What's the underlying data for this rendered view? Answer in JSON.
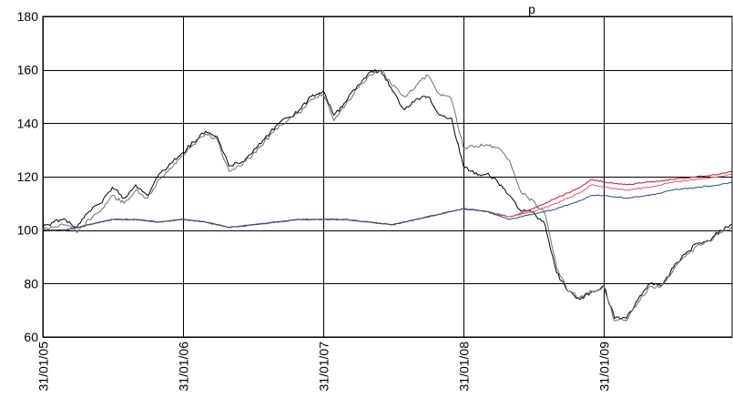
{
  "chart_data": {
    "type": "line",
    "title": "p",
    "xlabel": "",
    "ylabel": "",
    "x_ticks": [
      "31/01/05",
      "31/01/06",
      "31/01/07",
      "31/01/08",
      "31/01/09"
    ],
    "xlim": [
      "31/01/05",
      "31/12/09"
    ],
    "ylim": [
      60,
      180
    ],
    "y_ticks": [
      60,
      80,
      100,
      120,
      140,
      160,
      180
    ],
    "grid": true,
    "legend": "none",
    "colors": {
      "equity_a": "#000000",
      "equity_b": "#6e6e6e",
      "bond_red_1": "#c8102e",
      "bond_red_2": "#e0566b",
      "bond_blue": "#1f4e8c"
    },
    "series": [
      {
        "color_key": "equity_a",
        "points": [
          [
            "31/01/05",
            101
          ],
          [
            "28/02/05",
            103
          ],
          [
            "31/03/05",
            104
          ],
          [
            "30/04/05",
            101
          ],
          [
            "31/05/05",
            107
          ],
          [
            "30/06/05",
            110
          ],
          [
            "31/07/05",
            116
          ],
          [
            "31/08/05",
            112
          ],
          [
            "30/09/05",
            117
          ],
          [
            "31/10/05",
            113
          ],
          [
            "30/11/05",
            121
          ],
          [
            "31/12/05",
            125
          ],
          [
            "31/01/06",
            129
          ],
          [
            "28/02/06",
            133
          ],
          [
            "31/03/06",
            137
          ],
          [
            "30/04/06",
            135
          ],
          [
            "31/05/06",
            124
          ],
          [
            "30/06/06",
            125
          ],
          [
            "31/07/06",
            129
          ],
          [
            "31/08/06",
            134
          ],
          [
            "30/09/06",
            139
          ],
          [
            "31/10/06",
            142
          ],
          [
            "30/11/06",
            145
          ],
          [
            "31/12/06",
            150
          ],
          [
            "31/01/07",
            152
          ],
          [
            "28/02/07",
            143
          ],
          [
            "31/03/07",
            148
          ],
          [
            "30/04/07",
            154
          ],
          [
            "31/05/07",
            159
          ],
          [
            "30/06/07",
            160
          ],
          [
            "31/07/07",
            152
          ],
          [
            "31/08/07",
            145
          ],
          [
            "30/09/07",
            149
          ],
          [
            "31/10/07",
            150
          ],
          [
            "30/11/07",
            143
          ],
          [
            "31/12/07",
            142
          ],
          [
            "31/01/08",
            124
          ],
          [
            "29/02/08",
            121
          ],
          [
            "31/03/08",
            121
          ],
          [
            "30/04/08",
            118
          ],
          [
            "31/05/08",
            113
          ],
          [
            "30/06/08",
            107
          ],
          [
            "31/07/08",
            107
          ],
          [
            "31/08/08",
            102
          ],
          [
            "30/09/08",
            84
          ],
          [
            "31/10/08",
            77
          ],
          [
            "30/11/08",
            74
          ],
          [
            "31/12/08",
            77
          ],
          [
            "31/01/09",
            79
          ],
          [
            "28/02/09",
            67
          ],
          [
            "31/03/09",
            67
          ],
          [
            "30/04/09",
            74
          ],
          [
            "31/05/09",
            80
          ],
          [
            "30/06/09",
            79
          ],
          [
            "31/07/09",
            86
          ],
          [
            "31/08/09",
            91
          ],
          [
            "30/09/09",
            95
          ],
          [
            "31/10/09",
            96
          ],
          [
            "30/11/09",
            100
          ],
          [
            "31/12/09",
            102
          ]
        ]
      },
      {
        "color_key": "equity_b",
        "points": [
          [
            "31/01/05",
            100
          ],
          [
            "28/02/05",
            101
          ],
          [
            "31/03/05",
            102
          ],
          [
            "30/04/05",
            99
          ],
          [
            "31/05/05",
            104
          ],
          [
            "30/06/05",
            107
          ],
          [
            "31/07/05",
            113
          ],
          [
            "31/08/05",
            110
          ],
          [
            "30/09/05",
            115
          ],
          [
            "31/10/05",
            112
          ],
          [
            "30/11/05",
            119
          ],
          [
            "31/12/05",
            123
          ],
          [
            "31/01/06",
            128
          ],
          [
            "28/02/06",
            132
          ],
          [
            "31/03/06",
            136
          ],
          [
            "30/04/06",
            134
          ],
          [
            "31/05/06",
            122
          ],
          [
            "30/06/06",
            124
          ],
          [
            "31/07/06",
            128
          ],
          [
            "31/08/06",
            133
          ],
          [
            "30/09/06",
            138
          ],
          [
            "31/10/06",
            141
          ],
          [
            "30/11/06",
            144
          ],
          [
            "31/12/06",
            149
          ],
          [
            "31/01/07",
            151
          ],
          [
            "28/02/07",
            141
          ],
          [
            "31/03/07",
            147
          ],
          [
            "30/04/07",
            153
          ],
          [
            "31/05/07",
            158
          ],
          [
            "30/06/07",
            160
          ],
          [
            "31/07/07",
            154
          ],
          [
            "31/08/07",
            150
          ],
          [
            "30/09/07",
            154
          ],
          [
            "31/10/07",
            158
          ],
          [
            "30/11/07",
            151
          ],
          [
            "31/12/07",
            149
          ],
          [
            "31/01/08",
            131
          ],
          [
            "29/02/08",
            131
          ],
          [
            "31/03/08",
            132
          ],
          [
            "30/04/08",
            131
          ],
          [
            "31/05/08",
            126
          ],
          [
            "30/06/08",
            114
          ],
          [
            "31/07/08",
            111
          ],
          [
            "31/08/08",
            106
          ],
          [
            "30/09/08",
            86
          ],
          [
            "31/10/08",
            77
          ],
          [
            "30/11/08",
            75
          ],
          [
            "31/12/08",
            77
          ],
          [
            "31/01/09",
            79
          ],
          [
            "28/02/09",
            66
          ],
          [
            "31/03/09",
            66
          ],
          [
            "30/04/09",
            73
          ],
          [
            "31/05/09",
            79
          ],
          [
            "30/06/09",
            79
          ],
          [
            "31/07/09",
            85
          ],
          [
            "31/08/09",
            90
          ],
          [
            "30/09/09",
            94
          ],
          [
            "31/10/09",
            96
          ],
          [
            "30/11/09",
            99
          ],
          [
            "31/12/09",
            101
          ]
        ]
      },
      {
        "color_key": "bond_red_1",
        "points": [
          [
            "31/01/05",
            100
          ],
          [
            "31/03/05",
            100
          ],
          [
            "31/05/05",
            102
          ],
          [
            "31/07/05",
            104
          ],
          [
            "30/09/05",
            104
          ],
          [
            "30/11/05",
            103
          ],
          [
            "31/01/06",
            104
          ],
          [
            "31/03/06",
            103
          ],
          [
            "31/05/06",
            101
          ],
          [
            "31/07/06",
            102
          ],
          [
            "30/09/06",
            103
          ],
          [
            "30/11/06",
            104
          ],
          [
            "31/01/07",
            104
          ],
          [
            "31/03/07",
            104
          ],
          [
            "31/05/07",
            103
          ],
          [
            "31/07/07",
            102
          ],
          [
            "30/09/07",
            104
          ],
          [
            "30/11/07",
            106
          ],
          [
            "31/01/08",
            108
          ],
          [
            "31/03/08",
            107
          ],
          [
            "31/05/08",
            105
          ],
          [
            "31/07/08",
            108
          ],
          [
            "30/09/08",
            112
          ],
          [
            "30/11/08",
            116
          ],
          [
            "31/12/08",
            119
          ],
          [
            "31/01/09",
            118
          ],
          [
            "31/03/09",
            117
          ],
          [
            "31/05/09",
            118
          ],
          [
            "31/07/09",
            119
          ],
          [
            "30/09/09",
            120
          ],
          [
            "30/11/09",
            121
          ],
          [
            "31/12/09",
            122
          ]
        ]
      },
      {
        "color_key": "bond_red_2",
        "points": [
          [
            "31/01/05",
            100
          ],
          [
            "31/03/05",
            100
          ],
          [
            "31/05/05",
            102
          ],
          [
            "31/07/05",
            104
          ],
          [
            "30/09/05",
            104
          ],
          [
            "30/11/05",
            103
          ],
          [
            "31/01/06",
            104
          ],
          [
            "31/03/06",
            103
          ],
          [
            "31/05/06",
            101
          ],
          [
            "31/07/06",
            102
          ],
          [
            "30/09/06",
            103
          ],
          [
            "30/11/06",
            104
          ],
          [
            "31/01/07",
            104
          ],
          [
            "31/03/07",
            104
          ],
          [
            "31/05/07",
            103
          ],
          [
            "31/07/07",
            102
          ],
          [
            "30/09/07",
            104
          ],
          [
            "30/11/07",
            106
          ],
          [
            "31/01/08",
            108
          ],
          [
            "31/03/08",
            107
          ],
          [
            "31/05/08",
            105
          ],
          [
            "31/07/08",
            107
          ],
          [
            "30/09/08",
            110
          ],
          [
            "30/11/08",
            114
          ],
          [
            "31/12/08",
            117
          ],
          [
            "31/01/09",
            116
          ],
          [
            "31/03/09",
            115
          ],
          [
            "31/05/09",
            116
          ],
          [
            "31/07/09",
            118
          ],
          [
            "30/09/09",
            119
          ],
          [
            "30/11/09",
            120
          ],
          [
            "31/12/09",
            121
          ]
        ]
      },
      {
        "color_key": "bond_blue",
        "points": [
          [
            "31/01/05",
            100
          ],
          [
            "31/03/05",
            100
          ],
          [
            "31/05/05",
            102
          ],
          [
            "31/07/05",
            104
          ],
          [
            "30/09/05",
            104
          ],
          [
            "30/11/05",
            103
          ],
          [
            "31/01/06",
            104
          ],
          [
            "31/03/06",
            103
          ],
          [
            "31/05/06",
            101
          ],
          [
            "31/07/06",
            102
          ],
          [
            "30/09/06",
            103
          ],
          [
            "30/11/06",
            104
          ],
          [
            "31/01/07",
            104
          ],
          [
            "31/03/07",
            104
          ],
          [
            "31/05/07",
            103
          ],
          [
            "31/07/07",
            102
          ],
          [
            "30/09/07",
            104
          ],
          [
            "30/11/07",
            106
          ],
          [
            "31/01/08",
            108
          ],
          [
            "31/03/08",
            107
          ],
          [
            "31/05/08",
            104
          ],
          [
            "31/07/08",
            106
          ],
          [
            "30/09/08",
            108
          ],
          [
            "30/11/08",
            111
          ],
          [
            "31/12/08",
            113
          ],
          [
            "31/01/09",
            113
          ],
          [
            "31/03/09",
            112
          ],
          [
            "31/05/09",
            113
          ],
          [
            "31/07/09",
            115
          ],
          [
            "30/09/09",
            116
          ],
          [
            "30/11/09",
            117
          ],
          [
            "31/12/09",
            118
          ]
        ]
      }
    ]
  }
}
